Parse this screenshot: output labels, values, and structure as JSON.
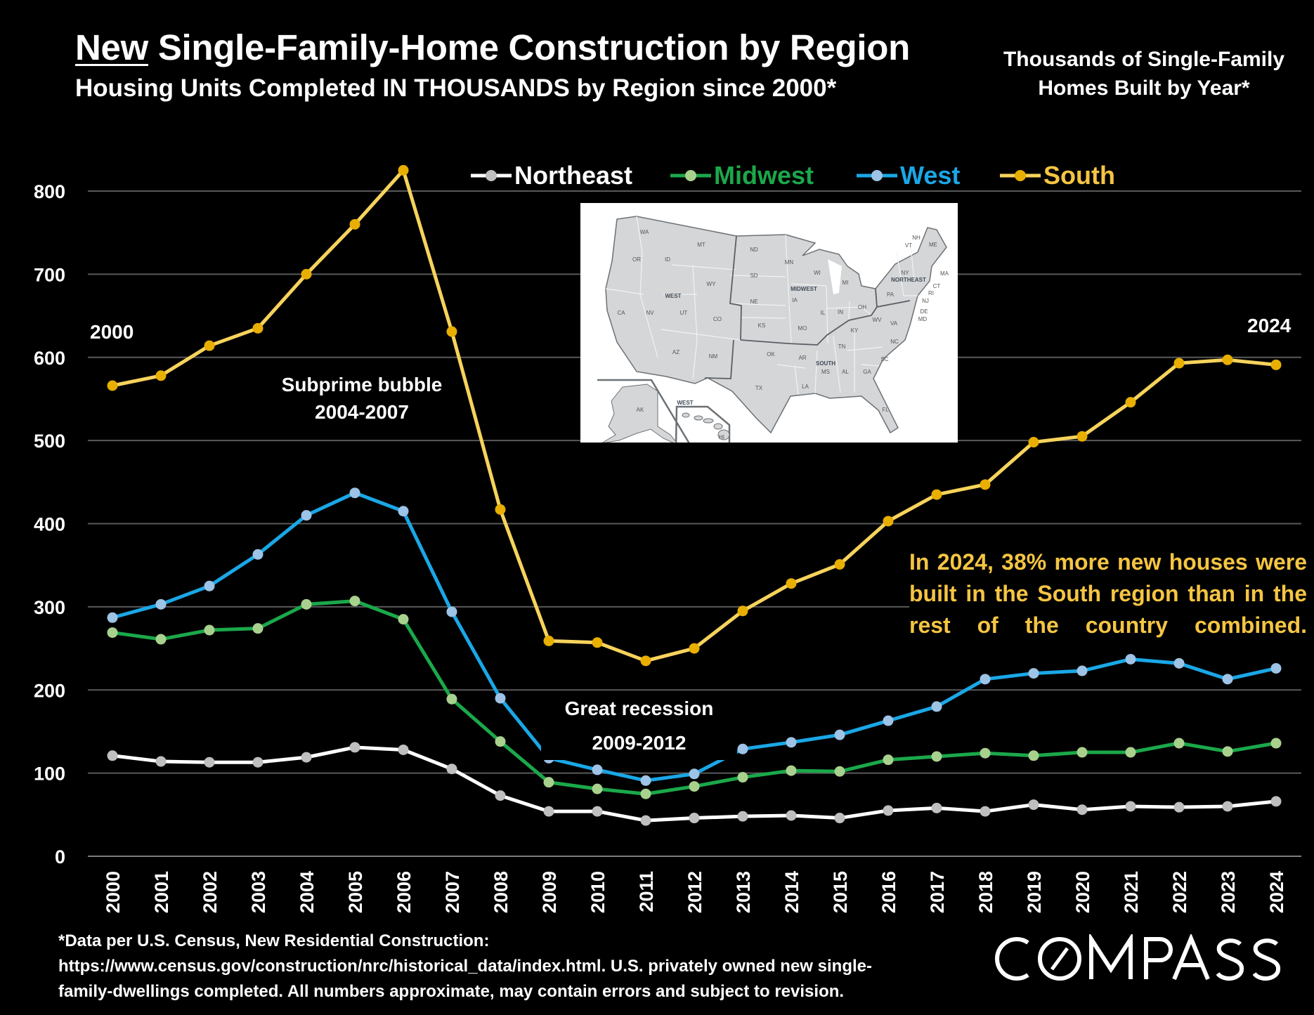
{
  "header": {
    "title_emphasis": "New",
    "title_rest": " Single-Family-Home Construction by Region",
    "subtitle": "Housing Units Completed IN THOUSANDS by Region since 2000*",
    "side_title_line1": "Thousands of Single-Family",
    "side_title_line2": "Homes Built by Year*"
  },
  "chart_data": {
    "type": "line",
    "title": "New Single-Family-Home Construction by Region",
    "subtitle": "Housing Units Completed IN THOUSANDS by Region since 2000*",
    "ylabel": "Thousands of Single-Family Homes Built by Year*",
    "ylim": [
      0,
      800
    ],
    "yticks": [
      0,
      100,
      200,
      300,
      400,
      500,
      600,
      700,
      800
    ],
    "grid": true,
    "legend_placement": "top-center",
    "x": [
      "2000",
      "2001",
      "2002",
      "2003",
      "2004",
      "2005",
      "2006",
      "2007",
      "2008",
      "2009",
      "2010",
      "2011",
      "2012",
      "2013",
      "2014",
      "2015",
      "2016",
      "2017",
      "2018",
      "2019",
      "2020",
      "2021",
      "2022",
      "2023",
      "2024"
    ],
    "series": [
      {
        "name": "Northeast",
        "line_color": "#FFFFFF",
        "marker_color": "#BFBFBF",
        "values": [
          121,
          114,
          113,
          113,
          119,
          131,
          128,
          105,
          73,
          54,
          54,
          43,
          46,
          48,
          49,
          46,
          55,
          58,
          54,
          62,
          56,
          60,
          59,
          60,
          66
        ]
      },
      {
        "name": "Midwest",
        "line_color": "#1BA84A",
        "marker_color": "#A9D18E",
        "values": [
          269,
          261,
          272,
          274,
          303,
          307,
          285,
          189,
          138,
          89,
          81,
          75,
          84,
          95,
          103,
          102,
          116,
          120,
          124,
          121,
          125,
          125,
          136,
          126,
          136
        ]
      },
      {
        "name": "West",
        "line_color": "#1AA7E6",
        "marker_color": "#9DC3E6",
        "values": [
          287,
          303,
          325,
          363,
          410,
          437,
          415,
          294,
          190,
          118,
          104,
          91,
          99,
          129,
          137,
          146,
          163,
          180,
          213,
          220,
          223,
          237,
          232,
          213,
          226
        ]
      },
      {
        "name": "South",
        "line_color": "#F7D35C",
        "marker_color": "#E8AE00",
        "values": [
          566,
          578,
          614,
          635,
          700,
          760,
          825,
          631,
          417,
          259,
          257,
          235,
          250,
          295,
          328,
          351,
          403,
          435,
          447,
          498,
          505,
          546,
          593,
          597,
          591
        ]
      }
    ],
    "annotations": {
      "start_year": "2000",
      "end_year": "2024",
      "bubble_line1": "Subprime bubble",
      "bubble_line2": "2004-2007",
      "recession_line1": "Great recession",
      "recession_line2": "2009-2012",
      "south_note": "In 2024, 38% more new houses were built in the South region than in the rest of the country combined."
    }
  },
  "map": {
    "region_labels": [
      "WEST",
      "MIDWEST",
      "SOUTH",
      "NORTHEAST",
      "WEST"
    ],
    "state_labels": [
      "WA",
      "OR",
      "ID",
      "MT",
      "WY",
      "CA",
      "NV",
      "UT",
      "CO",
      "AZ",
      "NM",
      "ND",
      "SD",
      "NE",
      "KS",
      "OK",
      "TX",
      "MN",
      "IA",
      "MO",
      "AR",
      "LA",
      "WI",
      "IL",
      "MI",
      "IN",
      "OH",
      "KY",
      "TN",
      "MS",
      "AL",
      "GA",
      "FL",
      "SC",
      "NC",
      "VA",
      "WV",
      "PA",
      "NY",
      "VT",
      "NH",
      "ME",
      "MA",
      "CT",
      "RI",
      "NJ",
      "DE",
      "MD",
      "AK",
      "HI"
    ]
  },
  "footer": {
    "footnote_line1": "*Data per U.S. Census, New Residential Construction:",
    "footnote_line2": "https://www.census.gov/construction/nrc/historical_data/index.html. U.S. privately owned new single-",
    "footnote_line3": "family-dwellings completed. All numbers approximate, may contain errors and subject to revision.",
    "logo_text": "COMPASS"
  }
}
